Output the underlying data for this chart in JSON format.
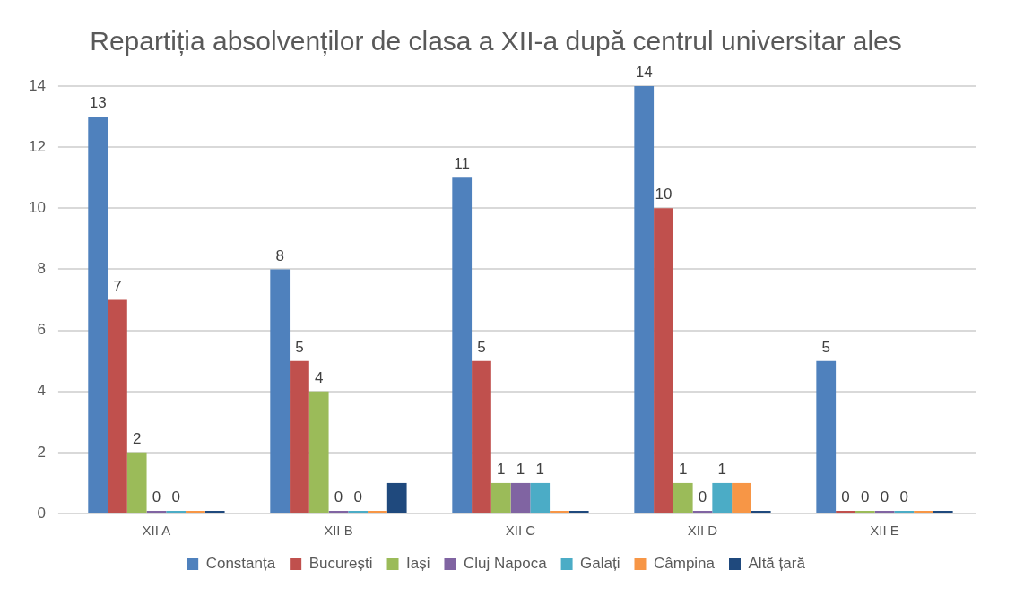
{
  "chart_data": {
    "type": "bar",
    "title": "Repartiția absolvenților de clasa a XII-a după centrul universitar ales",
    "categories": [
      "XII A",
      "XII B",
      "XII C",
      "XII D",
      "XII E"
    ],
    "series": [
      {
        "name": "Constanța",
        "color": "#4f81bd",
        "values": [
          13,
          8,
          11,
          14,
          5
        ],
        "value_labels": [
          "13",
          "8",
          "11",
          "14",
          "5"
        ]
      },
      {
        "name": "București",
        "color": "#c0504d",
        "values": [
          7,
          5,
          5,
          10,
          0
        ],
        "value_labels": [
          "7",
          "5",
          "5",
          "10",
          "0"
        ]
      },
      {
        "name": "Iași",
        "color": "#9bbb59",
        "values": [
          2,
          4,
          1,
          1,
          0
        ],
        "value_labels": [
          "2",
          "4",
          "1",
          "1",
          "0"
        ]
      },
      {
        "name": "Cluj Napoca",
        "color": "#8064a2",
        "values": [
          0,
          0,
          1,
          0,
          0
        ],
        "value_labels": [
          "0",
          "0",
          "1",
          "0",
          "0"
        ]
      },
      {
        "name": "Galați",
        "color": "#4bacc6",
        "values": [
          0,
          0,
          1,
          1,
          0
        ],
        "value_labels": [
          "0",
          "0",
          "1",
          "1",
          "0"
        ]
      },
      {
        "name": "Câmpina",
        "color": "#f79646",
        "values": [
          0,
          0,
          0,
          1,
          0
        ],
        "value_labels": [
          null,
          null,
          null,
          null,
          null
        ]
      },
      {
        "name": "Altă țară",
        "color": "#1f497d",
        "values": [
          0,
          1,
          0,
          0,
          0
        ],
        "value_labels": [
          null,
          null,
          null,
          null,
          null
        ]
      }
    ],
    "ylim": [
      0,
      14
    ],
    "yticks": [
      0,
      2,
      4,
      6,
      8,
      10,
      12,
      14
    ],
    "grid": "y",
    "legend": "bottom"
  }
}
